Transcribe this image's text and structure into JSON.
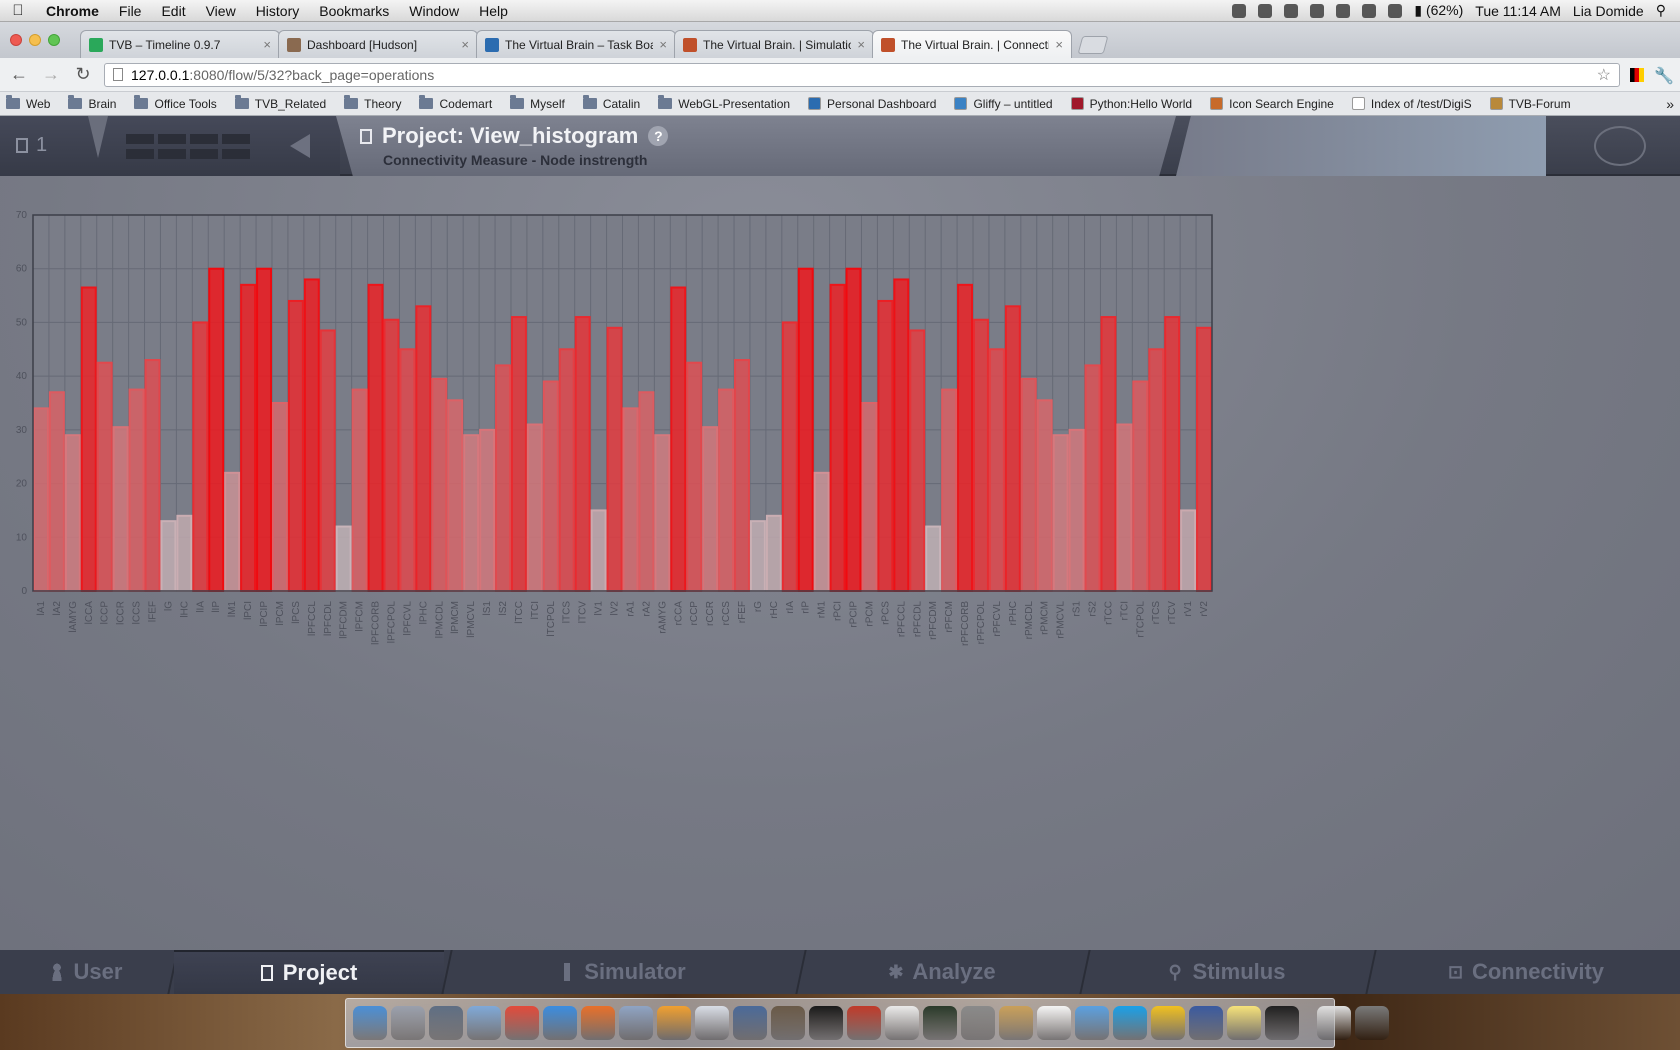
{
  "menubar": {
    "apple_icon": "apple-icon",
    "items": [
      "Chrome",
      "File",
      "Edit",
      "View",
      "History",
      "Bookmarks",
      "Window",
      "Help"
    ],
    "battery": "(62%)",
    "clock": "Tue 11:14 AM",
    "user": "Lia Domide"
  },
  "tabs": [
    {
      "title": "TVB – Timeline 0.9.7",
      "favicon": "#2aa85a"
    },
    {
      "title": "Dashboard [Hudson]",
      "favicon": "#8a6a50"
    },
    {
      "title": "The Virtual Brain – Task Boar",
      "favicon": "#2b6cb0"
    },
    {
      "title": "The Virtual Brain. | Simulatio",
      "favicon": "#c0502a"
    },
    {
      "title": "The Virtual Brain. | Connecti",
      "favicon": "#c0502a"
    }
  ],
  "address": {
    "host": "127.0.0.1",
    "path": ":8080/flow/5/32?back_page=operations"
  },
  "bookmarks": [
    {
      "label": "Web",
      "type": "folder"
    },
    {
      "label": "Brain",
      "type": "folder"
    },
    {
      "label": "Office Tools",
      "type": "folder"
    },
    {
      "label": "TVB_Related",
      "type": "folder"
    },
    {
      "label": "Theory",
      "type": "folder"
    },
    {
      "label": "Codemart",
      "type": "folder"
    },
    {
      "label": "Myself",
      "type": "folder"
    },
    {
      "label": "Catalin",
      "type": "folder"
    },
    {
      "label": "WebGL-Presentation",
      "type": "folder"
    },
    {
      "label": "Personal Dashboard",
      "type": "site",
      "color": "#2b6cb0"
    },
    {
      "label": "Gliffy – untitled",
      "type": "site",
      "color": "#3b82c4"
    },
    {
      "label": "Python:Hello World",
      "type": "site",
      "color": "#a0182a"
    },
    {
      "label": "Icon Search Engine",
      "type": "site",
      "color": "#c76a2a"
    },
    {
      "label": "Index of /test/DigiS",
      "type": "site",
      "color": "#ffffff"
    },
    {
      "label": "TVB-Forum",
      "type": "site",
      "color": "#b9893a"
    }
  ],
  "bookmarks_more": "»",
  "tvb_header": {
    "operation_count": "1",
    "project_title": "Project: View_histogram",
    "help_label": "?",
    "subtitle": "Connectivity Measure - Node instrength"
  },
  "bottom_nav": [
    {
      "label": "User",
      "icon": "user-icon"
    },
    {
      "label": "Project",
      "icon": "document-icon",
      "active": true
    },
    {
      "label": "Simulator",
      "icon": "simulator-icon"
    },
    {
      "label": "Analyze",
      "icon": "analyze-icon"
    },
    {
      "label": "Stimulus",
      "icon": "stimulus-icon"
    },
    {
      "label": "Connectivity",
      "icon": "connectivity-icon"
    }
  ],
  "dock_apps": [
    "finder",
    "launchpad",
    "photo-viewer",
    "preview",
    "chrome",
    "safari",
    "firefox",
    "xcode",
    "system-tools",
    "database",
    "postgres",
    "gimp",
    "terminal",
    "filezilla",
    "kdiff3",
    "activity-monitor",
    "system-preferences",
    "address-book",
    "calendar",
    "itunes",
    "skype",
    "adium",
    "calculator",
    "stickies",
    "x11",
    "documents",
    "trash"
  ],
  "chart_data": {
    "type": "bar",
    "ylim": [
      0,
      70
    ],
    "yticks": [
      0,
      10,
      20,
      30,
      40,
      50,
      60,
      70
    ],
    "grid": true,
    "categories": [
      "lA1",
      "lA2",
      "lAMYG",
      "lCCA",
      "lCCP",
      "lCCR",
      "lCCS",
      "lFEF",
      "lG",
      "lHC",
      "lIA",
      "lIP",
      "lM1",
      "lPCI",
      "lPCIP",
      "lPCM",
      "lPCS",
      "lPFCCL",
      "lPFCDL",
      "lPFCDM",
      "lPFCM",
      "lPFCORB",
      "lPFCPOL",
      "lPFCVL",
      "lPHC",
      "lPMCDL",
      "lPMCM",
      "lPMCVL",
      "lS1",
      "lS2",
      "lTCC",
      "lTCI",
      "lTCPOL",
      "lTCS",
      "lTCV",
      "lV1",
      "lV2",
      "rA1",
      "rA2",
      "rAMYG",
      "rCCA",
      "rCCP",
      "rCCR",
      "rCCS",
      "rFEF",
      "rG",
      "rHC",
      "rIA",
      "rIP",
      "rM1",
      "rPCI",
      "rPCIP",
      "rPCM",
      "rPCS",
      "rPFCCL",
      "rPFCDL",
      "rPFCDM",
      "rPFCM",
      "rPFCORB",
      "rPFCPOL",
      "rPFCVL",
      "rPHC",
      "rPMCDL",
      "rPMCM",
      "rPMCVL",
      "rS1",
      "rS2",
      "rTCC",
      "rTCI",
      "rTCPOL",
      "rTCS",
      "rTCV",
      "rV1",
      "rV2"
    ],
    "values": [
      34,
      37,
      29,
      56.5,
      42.5,
      30.5,
      37.5,
      43,
      13,
      14,
      50,
      60,
      22,
      57,
      60,
      35,
      54,
      58,
      48.5,
      12,
      37.5,
      57,
      50.5,
      45,
      53,
      39.5,
      35.5,
      29,
      30,
      42,
      51,
      31,
      39,
      45,
      51,
      15,
      49,
      34,
      37,
      29,
      56.5,
      42.5,
      30.5,
      37.5,
      43,
      13,
      14,
      50,
      60,
      22,
      57,
      60,
      35,
      54,
      58,
      48.5,
      12,
      37.5,
      57,
      50.5,
      45,
      53,
      39.5,
      35.5,
      29,
      30,
      42,
      51,
      31,
      39,
      45,
      51,
      15,
      49
    ]
  }
}
